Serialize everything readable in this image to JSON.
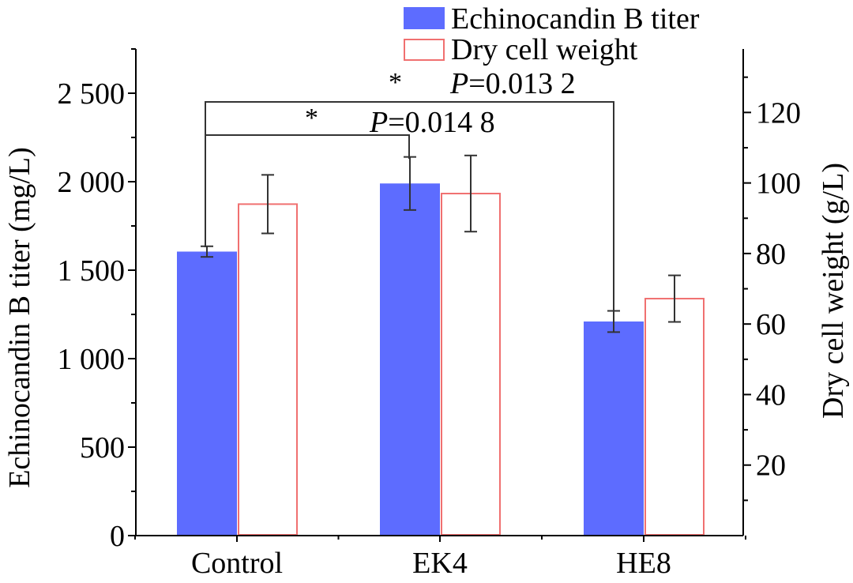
{
  "chart_data": {
    "type": "bar",
    "categories": [
      "Control",
      "EK4",
      "HE8"
    ],
    "left_axis": {
      "label": "Echinocandin B titer (mg/L)",
      "ylim": [
        0,
        2750
      ],
      "ticks": [
        {
          "value": 0,
          "label": "0"
        },
        {
          "value": 500,
          "label": "500"
        },
        {
          "value": 1000,
          "label": "1 000"
        },
        {
          "value": 1500,
          "label": "1 500"
        },
        {
          "value": 2000,
          "label": "2 000"
        },
        {
          "value": 2500,
          "label": "2 500"
        }
      ]
    },
    "right_axis": {
      "label": "Dry cell weight (g/L)",
      "ylim": [
        0,
        138
      ],
      "ticks": [
        {
          "value": 20,
          "label": "20"
        },
        {
          "value": 40,
          "label": "40"
        },
        {
          "value": 60,
          "label": "60"
        },
        {
          "value": 80,
          "label": "80"
        },
        {
          "value": 100,
          "label": "100"
        },
        {
          "value": 120,
          "label": "120"
        }
      ]
    },
    "series": [
      {
        "name": "Echinocandin B titer",
        "axis": "left",
        "style": "filled",
        "color": "#5d6cff",
        "values": [
          1605,
          1990,
          1210
        ],
        "errors": [
          30,
          150,
          60
        ]
      },
      {
        "name": "Dry cell weight",
        "axis": "right",
        "style": "outline",
        "color": "#f07070",
        "values": [
          94,
          97,
          67.2
        ],
        "errors": [
          8.3,
          10.8,
          6.6
        ]
      }
    ],
    "significance": [
      {
        "from_category": "Control",
        "to_category": "EK4",
        "star": "*",
        "p_prefix": "P",
        "p_value": "=0.014 8"
      },
      {
        "from_category": "Control",
        "to_category": "HE8",
        "star": "*",
        "p_prefix": "P",
        "p_value": "=0.013 2"
      }
    ],
    "legend_position": "top-right",
    "grid": false
  }
}
